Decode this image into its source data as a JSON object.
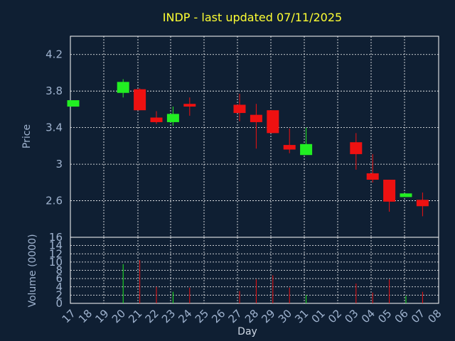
{
  "chart_data": {
    "type": "candlestick",
    "title": "INDP - last updated 07/11/2025",
    "xlabel": "Day",
    "price_panel": {
      "ylabel": "Price",
      "ylim": [
        2.2,
        4.4
      ],
      "yticks": [
        "2.6",
        "3",
        "3.4",
        "3.8",
        "4.2"
      ],
      "ytick_values": [
        2.6,
        3.0,
        3.4,
        3.8,
        4.2
      ],
      "grid": true
    },
    "volume_panel": {
      "ylabel": "Volume (0000)",
      "ylim": [
        0,
        16
      ],
      "yticks": [
        "0",
        "2",
        "4",
        "6",
        "8",
        "10",
        "12",
        "14",
        "16"
      ],
      "ytick_values": [
        0,
        2,
        4,
        6,
        8,
        10,
        12,
        14,
        16
      ],
      "grid": true
    },
    "x_ticks": [
      "17",
      "18",
      "19",
      "20",
      "21",
      "22",
      "23",
      "24",
      "25",
      "26",
      "27",
      "28",
      "29",
      "30",
      "31",
      "01",
      "02",
      "03",
      "04",
      "05",
      "06",
      "07",
      "08"
    ],
    "up_color": "#22ee22",
    "down_color": "#ee1111",
    "candles": [
      {
        "i": 0,
        "open": 3.63,
        "close": 3.7,
        "high": 3.7,
        "low": 3.63,
        "volume": 0
      },
      {
        "i": 3,
        "open": 3.78,
        "close": 3.9,
        "high": 3.93,
        "low": 3.73,
        "volume": 9.5
      },
      {
        "i": 4,
        "open": 3.82,
        "close": 3.59,
        "high": 3.83,
        "low": 3.59,
        "volume": 10.5
      },
      {
        "i": 5,
        "open": 3.51,
        "close": 3.46,
        "high": 3.58,
        "low": 3.44,
        "volume": 4.0
      },
      {
        "i": 6,
        "open": 3.46,
        "close": 3.55,
        "high": 3.63,
        "low": 3.42,
        "volume": 2.8
      },
      {
        "i": 7,
        "open": 3.66,
        "close": 3.63,
        "high": 3.73,
        "low": 3.53,
        "volume": 3.8
      },
      {
        "i": 10,
        "open": 3.65,
        "close": 3.56,
        "high": 3.77,
        "low": 3.47,
        "volume": 3.0
      },
      {
        "i": 11,
        "open": 3.54,
        "close": 3.46,
        "high": 3.66,
        "low": 3.17,
        "volume": 5.8
      },
      {
        "i": 12,
        "open": 3.59,
        "close": 3.34,
        "high": 3.59,
        "low": 3.34,
        "volume": 6.8
      },
      {
        "i": 13,
        "open": 3.21,
        "close": 3.16,
        "high": 3.39,
        "low": 3.12,
        "volume": 3.8
      },
      {
        "i": 14,
        "open": 3.1,
        "close": 3.22,
        "high": 3.4,
        "low": 3.1,
        "volume": 2.0
      },
      {
        "i": 17,
        "open": 3.24,
        "close": 3.11,
        "high": 3.34,
        "low": 2.94,
        "volume": 4.8
      },
      {
        "i": 18,
        "open": 2.9,
        "close": 2.83,
        "high": 3.11,
        "low": 2.8,
        "volume": 2.6
      },
      {
        "i": 19,
        "open": 2.83,
        "close": 2.59,
        "high": 2.83,
        "low": 2.48,
        "volume": 5.8
      },
      {
        "i": 20,
        "open": 2.64,
        "close": 2.68,
        "high": 2.68,
        "low": 2.64,
        "volume": 1.8
      },
      {
        "i": 21,
        "open": 2.61,
        "close": 2.54,
        "high": 2.69,
        "low": 2.43,
        "volume": 2.8
      }
    ]
  }
}
